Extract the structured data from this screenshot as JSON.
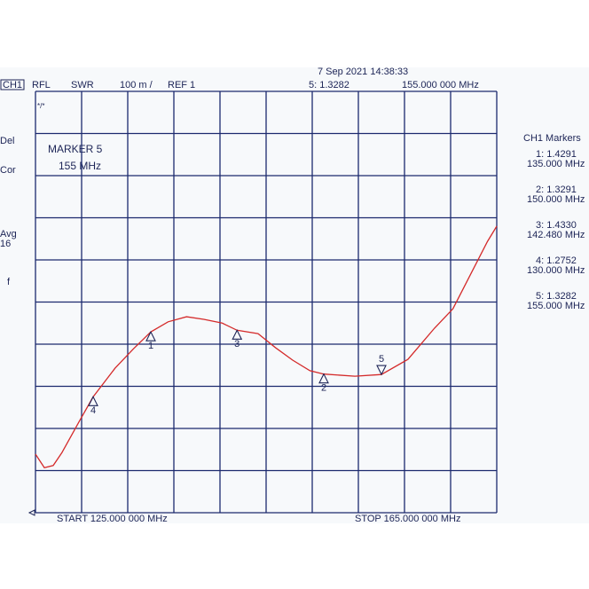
{
  "chart_data": {
    "type": "line",
    "header": {
      "channel": "CH1",
      "mode": "RFL",
      "format": "SWR",
      "scale": "100 m /",
      "ref": "REF 1",
      "datetime": "7 Sep 2021  14:38:33",
      "active_readout": "5: 1.3282",
      "active_freq": "155.000  000  MHz"
    },
    "side_left": [
      "Del",
      "Cor",
      "Avg",
      "16",
      "f"
    ],
    "annotation": {
      "title": "MARKER 5",
      "freq": "155 MHz"
    },
    "start_label": "START  125.000  000  MHz",
    "stop_label": "STOP  165.000  000  MHz",
    "xlim": [
      125,
      165
    ],
    "ylim": [
      1.0,
      2.0
    ],
    "grid": true,
    "grid_divisions": 10,
    "x": [
      125,
      125.77,
      126.54,
      127.3,
      128.8,
      130,
      131.9,
      133.5,
      135,
      136.5,
      138.1,
      139.6,
      141.2,
      142.48,
      144.3,
      145.8,
      147.3,
      148.8,
      150,
      152.7,
      155,
      157.3,
      159.6,
      161.2,
      162.7,
      164.2,
      165
    ],
    "series": [
      {
        "name": "SWR",
        "color": "#d42a2a",
        "values": [
          1.139,
          1.107,
          1.112,
          1.143,
          1.217,
          1.275,
          1.343,
          1.389,
          1.429,
          1.453,
          1.465,
          1.459,
          1.45,
          1.433,
          1.425,
          1.392,
          1.362,
          1.337,
          1.329,
          1.324,
          1.328,
          1.364,
          1.438,
          1.484,
          1.564,
          1.644,
          1.68
        ]
      }
    ],
    "markers_title": "CH1 Markers",
    "markers": [
      {
        "label": "1",
        "readout": "1: 1.4291",
        "freq_text": "135.000  MHz",
        "x": 135,
        "value": 1.4291
      },
      {
        "label": "2",
        "readout": "2: 1.3291",
        "freq_text": "150.000  MHz",
        "x": 150,
        "value": 1.3291
      },
      {
        "label": "3",
        "readout": "3: 1.4330",
        "freq_text": "142.480  MHz",
        "x": 142.48,
        "value": 1.433
      },
      {
        "label": "4",
        "readout": "4: 1.2752",
        "freq_text": "130.000  MHz",
        "x": 130,
        "value": 1.2752
      },
      {
        "label": "5",
        "readout": "5: 1.3282",
        "freq_text": "155.000  MHz",
        "x": 155,
        "value": 1.3282,
        "active": true
      }
    ]
  }
}
